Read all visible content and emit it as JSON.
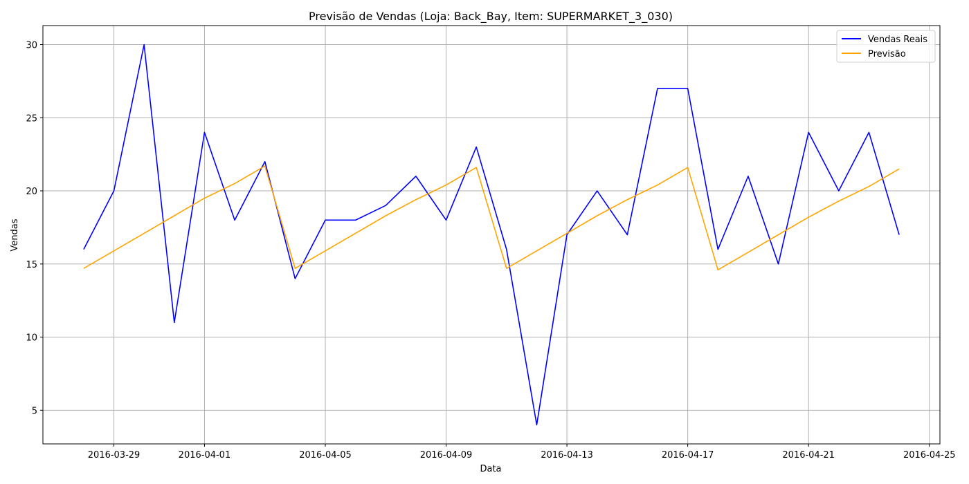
{
  "chart_data": {
    "type": "line",
    "title": "Previsão de Vendas (Loja: Back_Bay, Item: SUPERMARKET_3_030)",
    "xlabel": "Data",
    "ylabel": "Vendas",
    "x": [
      "2016-03-28",
      "2016-03-29",
      "2016-03-30",
      "2016-03-31",
      "2016-04-01",
      "2016-04-02",
      "2016-04-03",
      "2016-04-04",
      "2016-04-05",
      "2016-04-06",
      "2016-04-07",
      "2016-04-08",
      "2016-04-09",
      "2016-04-10",
      "2016-04-11",
      "2016-04-12",
      "2016-04-13",
      "2016-04-14",
      "2016-04-15",
      "2016-04-16",
      "2016-04-17",
      "2016-04-18",
      "2016-04-19",
      "2016-04-20",
      "2016-04-21",
      "2016-04-22",
      "2016-04-23",
      "2016-04-24"
    ],
    "series": [
      {
        "name": "Vendas Reais",
        "color": "#0000ff",
        "values": [
          16,
          20,
          30,
          11,
          24,
          18,
          22,
          14,
          18,
          18,
          19,
          21,
          18,
          23,
          16,
          4,
          17,
          20,
          17,
          27,
          27,
          16,
          21,
          15,
          24,
          20,
          24,
          17
        ]
      },
      {
        "name": "Previsão",
        "color": "#ffa500",
        "values": [
          14.7,
          15.9,
          17.1,
          18.3,
          19.5,
          20.5,
          21.7,
          14.7,
          15.9,
          17.1,
          18.3,
          19.4,
          20.4,
          21.6,
          14.7,
          15.9,
          17.1,
          18.3,
          19.4,
          20.4,
          21.6,
          14.6,
          15.8,
          17.0,
          18.2,
          19.3,
          20.3,
          21.5
        ]
      }
    ],
    "ylim": [
      2.7,
      31.3
    ],
    "xlim": [
      "2016-03-26.65",
      "2016-04-25.35"
    ],
    "yticks": [
      5,
      10,
      15,
      20,
      25,
      30
    ],
    "xticks": [
      "2016-03-29",
      "2016-04-01",
      "2016-04-05",
      "2016-04-09",
      "2016-04-13",
      "2016-04-17",
      "2016-04-21",
      "2016-04-25"
    ],
    "grid": true,
    "legend": "top-right"
  }
}
